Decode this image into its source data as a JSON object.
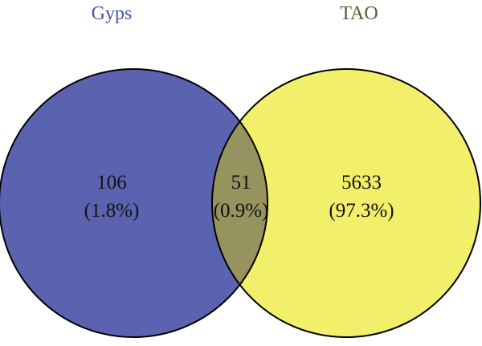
{
  "sets": [
    {
      "name": "Gyps",
      "color": "#5B63B0",
      "label_color": "#4A52A6"
    },
    {
      "name": "TAO",
      "color": "#F2EF6A",
      "label_color": "#5E5A2E"
    }
  ],
  "overlap_color": "#96935E",
  "outline_color": "#000000",
  "regions": {
    "left_only": {
      "count": "106",
      "percent": "(1.8%)"
    },
    "both": {
      "count": "51",
      "percent": "(0.9%)"
    },
    "right_only": {
      "count": "5633",
      "percent": "(97.3%)"
    }
  }
}
